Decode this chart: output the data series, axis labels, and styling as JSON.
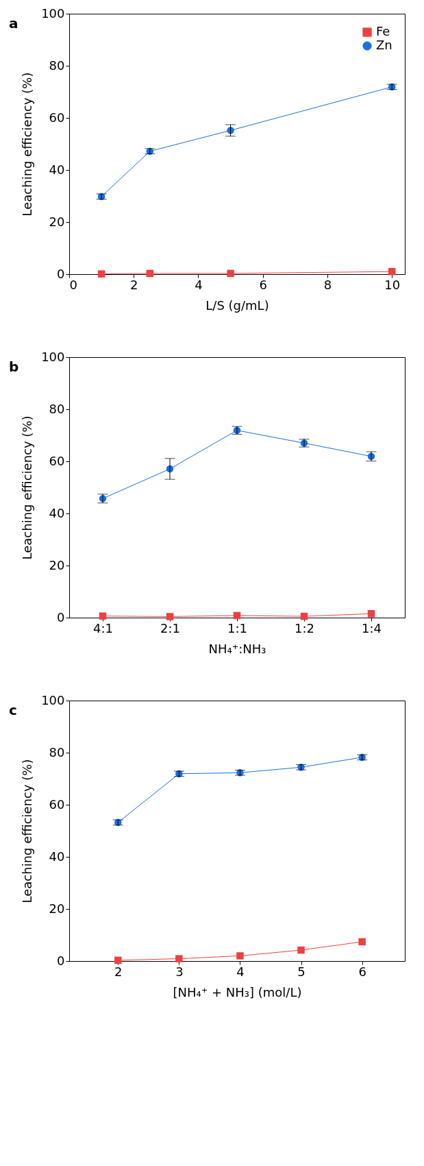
{
  "chart_data": [
    {
      "type": "line",
      "title": "a",
      "xlabel": "L/S (g/mL)",
      "ylabel": "Leaching efficiency (%)",
      "x": [
        1,
        2.5,
        5,
        10
      ],
      "xlim": [
        0,
        10.4
      ],
      "xticks": [
        0,
        2,
        4,
        6,
        8,
        10
      ],
      "ylim": [
        0,
        100
      ],
      "yticks": [
        0,
        20,
        40,
        60,
        80,
        100
      ],
      "grid": false,
      "legend": "top right",
      "series": [
        {
          "name": "Fe",
          "color": "#ee4040",
          "marker": "square",
          "values": [
            0.1,
            0.3,
            0.3,
            1.0
          ]
        },
        {
          "name": "Zn",
          "color": "#1a6ee0",
          "marker": "circle",
          "values": [
            29.8,
            47.2,
            55.2,
            71.9
          ],
          "errors": [
            1,
            1,
            2.2,
            1
          ]
        }
      ]
    },
    {
      "type": "line",
      "title": "b",
      "xlabel": "NH₄⁺:NH₃",
      "ylabel": "Leaching efficiency (%)",
      "categories": [
        "4:1",
        "2:1",
        "1:1",
        "1:2",
        "1:4"
      ],
      "ylim": [
        0,
        100
      ],
      "yticks": [
        0,
        20,
        40,
        60,
        80,
        100
      ],
      "grid": false,
      "legend": "top right",
      "series": [
        {
          "name": "Fe",
          "color": "#ee4040",
          "marker": "square",
          "values": [
            0.6,
            0.4,
            0.8,
            0.5,
            1.5
          ]
        },
        {
          "name": "Zn",
          "color": "#1a6ee0",
          "marker": "circle",
          "values": [
            45.7,
            57.1,
            71.9,
            67.0,
            61.9
          ],
          "errors": [
            1.7,
            4,
            1.5,
            1.5,
            1.8
          ]
        }
      ]
    },
    {
      "type": "line",
      "title": "c",
      "xlabel": "[NH₄⁺ + NH₃] (mol/L)",
      "ylabel": "Leaching efficiency (%)",
      "x": [
        2,
        3,
        4,
        5,
        6
      ],
      "xlim": [
        1.2,
        6.7
      ],
      "xticks": [
        2,
        3,
        4,
        5,
        6
      ],
      "ylim": [
        0,
        100
      ],
      "yticks": [
        0,
        20,
        40,
        60,
        80,
        100
      ],
      "grid": false,
      "legend": "top right",
      "series": [
        {
          "name": "Fe",
          "color": "#ee4040",
          "marker": "square",
          "values": [
            0.3,
            0.9,
            2.0,
            4.2,
            7.4
          ]
        },
        {
          "name": "Zn",
          "color": "#1a6ee0",
          "marker": "circle",
          "values": [
            53.2,
            71.9,
            72.3,
            74.4,
            78.2
          ],
          "errors": [
            1,
            1,
            1,
            1,
            1
          ]
        }
      ]
    }
  ]
}
